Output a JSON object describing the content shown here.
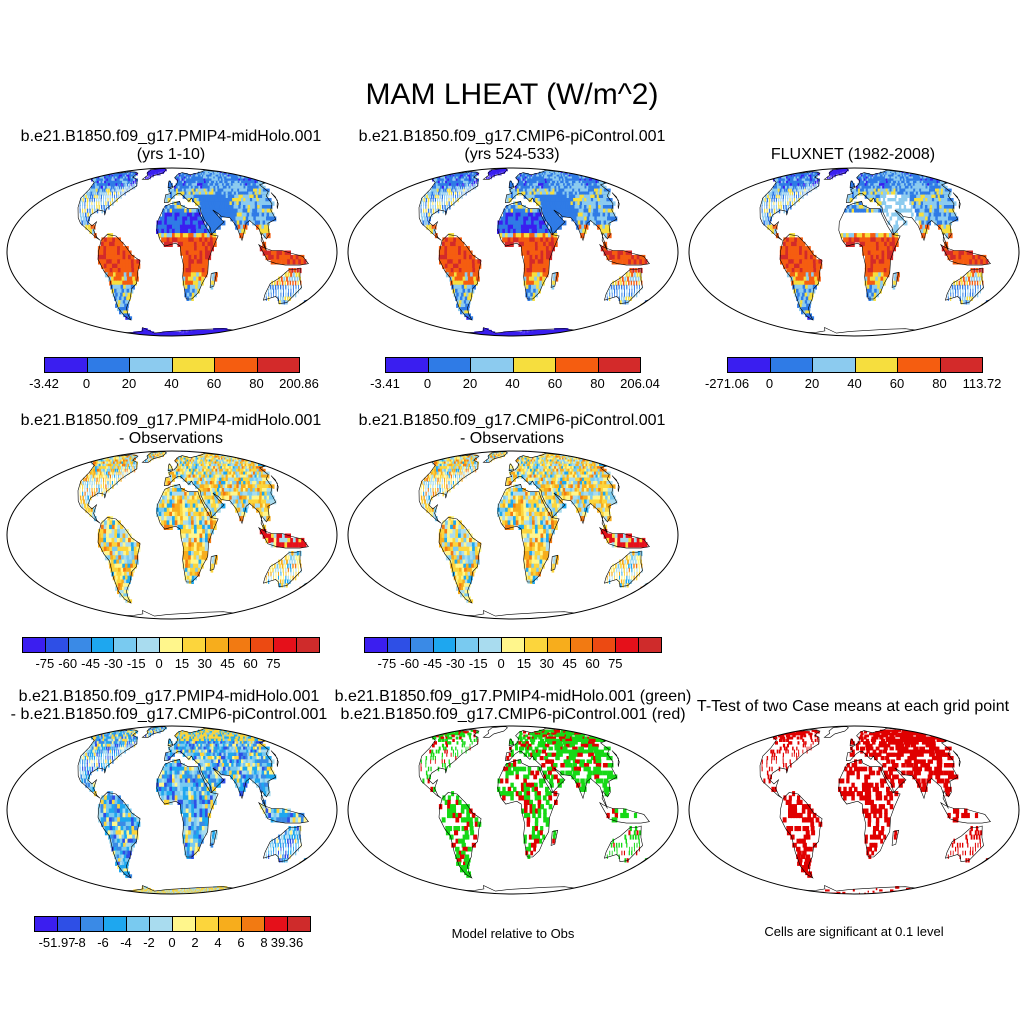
{
  "title": "MAM LHEAT (W/m^2)",
  "palettes": {
    "abs": [
      "#3a1ef0",
      "#2f7be6",
      "#8ccbef",
      "#f6de3e",
      "#f55d10",
      "#d32a2a"
    ],
    "diff": [
      "#3b1ef0",
      "#2e4fe6",
      "#3a8ae6",
      "#1ea7ef",
      "#79caf0",
      "#a9dcef",
      "#fff68c",
      "#fcd53c",
      "#f7ad1c",
      "#f27a12",
      "#ec4a12",
      "#e5101a",
      "#cf2b2b"
    ],
    "cc": [
      "#3b1ef0",
      "#2e4fe6",
      "#3a8ae6",
      "#1ea7ef",
      "#79caf0",
      "#a9dcef",
      "#fff68c",
      "#fcd53c",
      "#f7ad1c",
      "#f27a12",
      "#e5101a",
      "#cf2b2b"
    ],
    "green": "#16d916",
    "red": "#e00000"
  },
  "panels": [
    {
      "id": "p1",
      "line1": "b.e21.B1850.f09_g17.PMIP4-midHolo.001",
      "line2": "(yrs 1-10)",
      "field": "abs",
      "colorbar": {
        "palette": "abs",
        "labels": [
          "-3.42",
          "0",
          "20",
          "40",
          "60",
          "80",
          "200.86"
        ]
      }
    },
    {
      "id": "p2",
      "line1": "b.e21.B1850.f09_g17.CMIP6-piControl.001",
      "line2": "(yrs 524-533)",
      "field": "abs",
      "colorbar": {
        "palette": "abs",
        "labels": [
          "-3.41",
          "0",
          "20",
          "40",
          "60",
          "80",
          "206.04"
        ]
      }
    },
    {
      "id": "p3",
      "line1": "FLUXNET (1982-2008)",
      "line2": "",
      "field": "obs",
      "colorbar": {
        "palette": "abs",
        "labels": [
          "-271.06",
          "0",
          "20",
          "40",
          "60",
          "80",
          "113.72"
        ]
      }
    },
    {
      "id": "p4",
      "line1": "b.e21.B1850.f09_g17.PMIP4-midHolo.001",
      "line2": "- Observations",
      "field": "diff",
      "colorbar": {
        "palette": "diff",
        "labels": [
          "-75",
          "-60",
          "-45",
          "-30",
          "-15",
          "0",
          "15",
          "30",
          "45",
          "60",
          "75"
        ]
      }
    },
    {
      "id": "p5",
      "line1": "b.e21.B1850.f09_g17.CMIP6-piControl.001",
      "line2": "- Observations",
      "field": "diff",
      "colorbar": {
        "palette": "diff",
        "labels": [
          "-75",
          "-60",
          "-45",
          "-30",
          "-15",
          "0",
          "15",
          "30",
          "45",
          "60",
          "75"
        ]
      }
    },
    {
      "id": "p7",
      "line1": "b.e21.B1850.f09_g17.PMIP4-midHolo.001",
      "line2": "- b.e21.B1850.f09_g17.CMIP6-piControl.001",
      "field": "casediff",
      "colorbar": {
        "palette": "cc",
        "labels": [
          "-51.97",
          "-8",
          "-6",
          "-4",
          "-2",
          "0",
          "2",
          "4",
          "6",
          "8",
          "39.36"
        ]
      }
    },
    {
      "id": "p8",
      "line1": "b.e21.B1850.f09_g17.PMIP4-midHolo.001 (green)",
      "line2": "b.e21.B1850.f09_g17.CMIP6-piControl.001 (red)",
      "field": "greenred",
      "note": "Model relative to Obs"
    },
    {
      "id": "p9",
      "line1": "T-Test of two Case means at each grid point",
      "line2": "",
      "field": "ttest",
      "note": "Cells are significant at 0.1 level"
    }
  ]
}
